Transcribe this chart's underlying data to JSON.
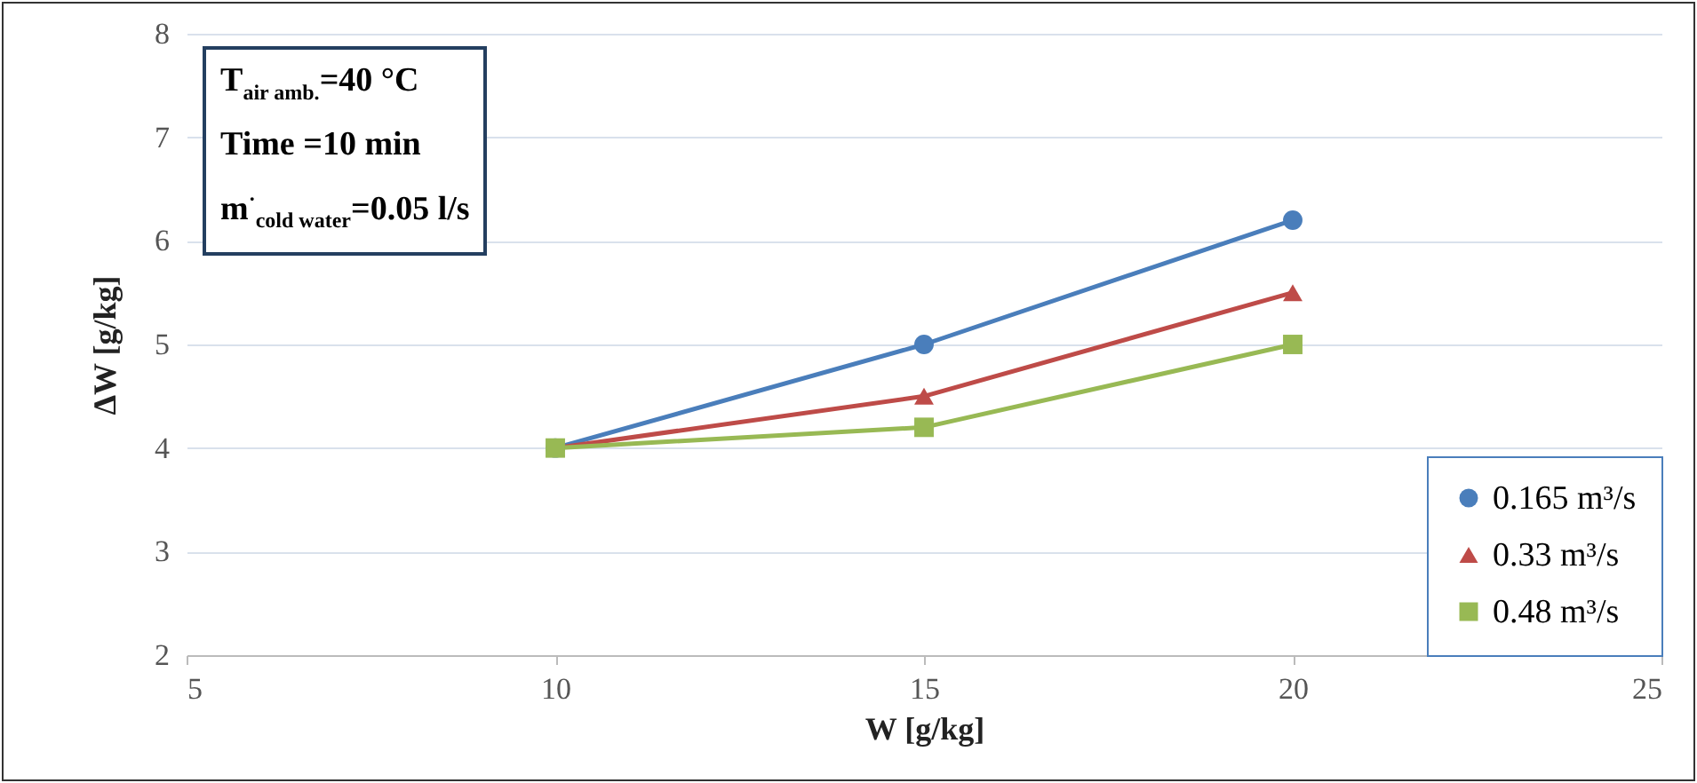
{
  "chart_data": {
    "type": "line",
    "xlabel": "W [g/kg]",
    "ylabel": "ΔW [g/kg]",
    "x": [
      10,
      15,
      20
    ],
    "series": [
      {
        "name": "0.165 m³/s",
        "color": "#4a7ebb",
        "marker": "circle",
        "values": [
          4,
          5,
          6.2
        ]
      },
      {
        "name": "0.33 m³/s",
        "color": "#be4b48",
        "marker": "triangle",
        "values": [
          4,
          4.5,
          5.5
        ]
      },
      {
        "name": "0.48 m³/s",
        "color": "#98b954",
        "marker": "square",
        "values": [
          4,
          4.2,
          5
        ]
      }
    ],
    "xlim": [
      5,
      25
    ],
    "xticks": [
      5,
      10,
      15,
      20,
      25
    ],
    "ylim": [
      2,
      8
    ],
    "yticks": [
      2,
      3,
      4,
      5,
      6,
      7,
      8
    ],
    "grid": "y",
    "legend": "bottom right",
    "annotations": [
      "T$_{air amb.}$=40 °C",
      "Time =10 min",
      "m$^{·}$$_{cold water}$=0.05 l/s"
    ]
  }
}
